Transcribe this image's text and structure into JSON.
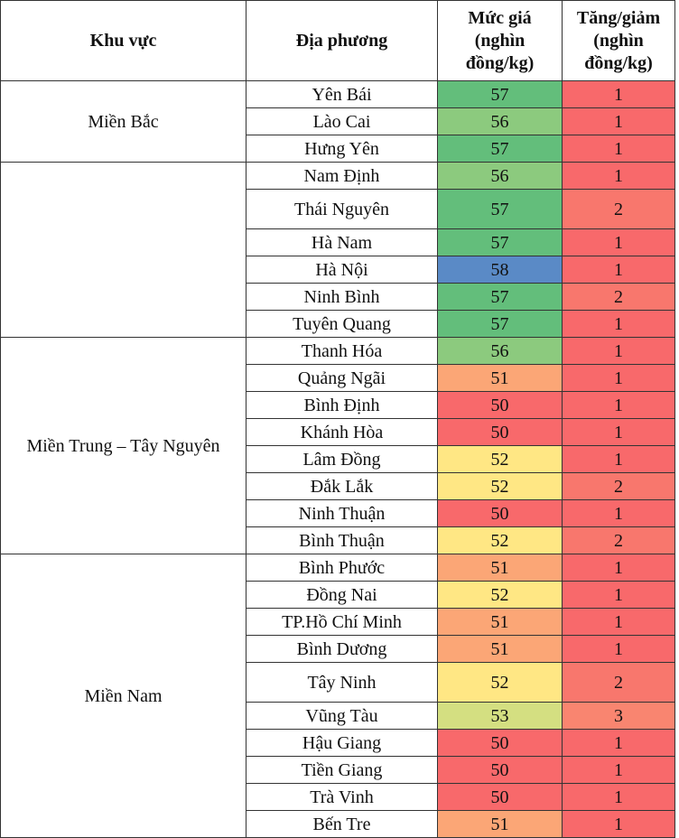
{
  "header": [
    "Khu vực",
    "Địa phương",
    "Mức giá (nghìn đồng/kg)",
    "Tăng/giảm (nghìn đồng/kg)"
  ],
  "regions": [
    {
      "name": "Miền Bắc",
      "rows": [
        {
          "province": "Yên Bái",
          "price": 57,
          "change": 1,
          "price_color": "#63be7b",
          "change_color": "#f8696b"
        },
        {
          "province": "Lào Cai",
          "price": 56,
          "change": 1,
          "price_color": "#8cca7e",
          "change_color": "#f8696b"
        },
        {
          "province": "Hưng Yên",
          "price": 57,
          "change": 1,
          "price_color": "#63be7b",
          "change_color": "#f8696b"
        }
      ]
    },
    {
      "name": "",
      "rows": [
        {
          "province": "Nam Định",
          "price": 56,
          "change": 1,
          "price_color": "#8cca7e",
          "change_color": "#f8696b"
        },
        {
          "province": "Thái Nguyên",
          "price": 57,
          "change": 2,
          "price_color": "#63be7b",
          "change_color": "#f8776d"
        },
        {
          "province": "Hà Nam",
          "price": 57,
          "change": 1,
          "price_color": "#63be7b",
          "change_color": "#f8696b"
        },
        {
          "province": "Hà Nội",
          "price": 58,
          "change": 1,
          "price_color": "#5a8ac6",
          "change_color": "#f8696b"
        },
        {
          "province": "Ninh Bình",
          "price": 57,
          "change": 2,
          "price_color": "#63be7b",
          "change_color": "#f8776d"
        },
        {
          "province": "Tuyên Quang",
          "price": 57,
          "change": 1,
          "price_color": "#63be7b",
          "change_color": "#f8696b"
        }
      ]
    },
    {
      "name": "Miền Trung – Tây Nguyên",
      "rows": [
        {
          "province": "Thanh Hóa",
          "price": 56,
          "change": 1,
          "price_color": "#8cca7e",
          "change_color": "#f8696b"
        },
        {
          "province": "Quảng Ngãi",
          "price": 51,
          "change": 1,
          "price_color": "#fba676",
          "change_color": "#f8696b"
        },
        {
          "province": "Bình Định",
          "price": 50,
          "change": 1,
          "price_color": "#f8696b",
          "change_color": "#f8696b"
        },
        {
          "province": "Khánh Hòa",
          "price": 50,
          "change": 1,
          "price_color": "#f8696b",
          "change_color": "#f8696b"
        },
        {
          "province": "Lâm Đồng",
          "price": 52,
          "change": 1,
          "price_color": "#ffe784",
          "change_color": "#f8696b"
        },
        {
          "province": "Đắk Lắk",
          "price": 52,
          "change": 2,
          "price_color": "#ffe784",
          "change_color": "#f8776d"
        },
        {
          "province": "Ninh Thuận",
          "price": 50,
          "change": 1,
          "price_color": "#f8696b",
          "change_color": "#f8696b"
        },
        {
          "province": "Bình Thuận",
          "price": 52,
          "change": 2,
          "price_color": "#ffe784",
          "change_color": "#f8776d"
        }
      ]
    },
    {
      "name": "Miền Nam",
      "rows": [
        {
          "province": "Bình Phước",
          "price": 51,
          "change": 1,
          "price_color": "#fba676",
          "change_color": "#f8696b"
        },
        {
          "province": "Đồng Nai",
          "price": 52,
          "change": 1,
          "price_color": "#ffe784",
          "change_color": "#f8696b"
        },
        {
          "province": "TP.Hồ Chí Minh",
          "price": 51,
          "change": 1,
          "price_color": "#fba676",
          "change_color": "#f8696b"
        },
        {
          "province": "Bình Dương",
          "price": 51,
          "change": 1,
          "price_color": "#fba676",
          "change_color": "#f8696b"
        },
        {
          "province": "Tây Ninh",
          "price": 52,
          "change": 2,
          "price_color": "#ffe784",
          "change_color": "#f8776d"
        },
        {
          "province": "Vũng Tàu",
          "price": 53,
          "change": 3,
          "price_color": "#d4df81",
          "change_color": "#f98570"
        },
        {
          "province": "Hậu Giang",
          "price": 50,
          "change": 1,
          "price_color": "#f8696b",
          "change_color": "#f8696b"
        },
        {
          "province": "Tiền Giang",
          "price": 50,
          "change": 1,
          "price_color": "#f8696b",
          "change_color": "#f8696b"
        },
        {
          "province": "Trà Vinh",
          "price": 50,
          "change": 1,
          "price_color": "#f8696b",
          "change_color": "#f8696b"
        },
        {
          "province": "Bến Tre",
          "price": 51,
          "change": 1,
          "price_color": "#fba676",
          "change_color": "#f8696b"
        }
      ]
    }
  ]
}
